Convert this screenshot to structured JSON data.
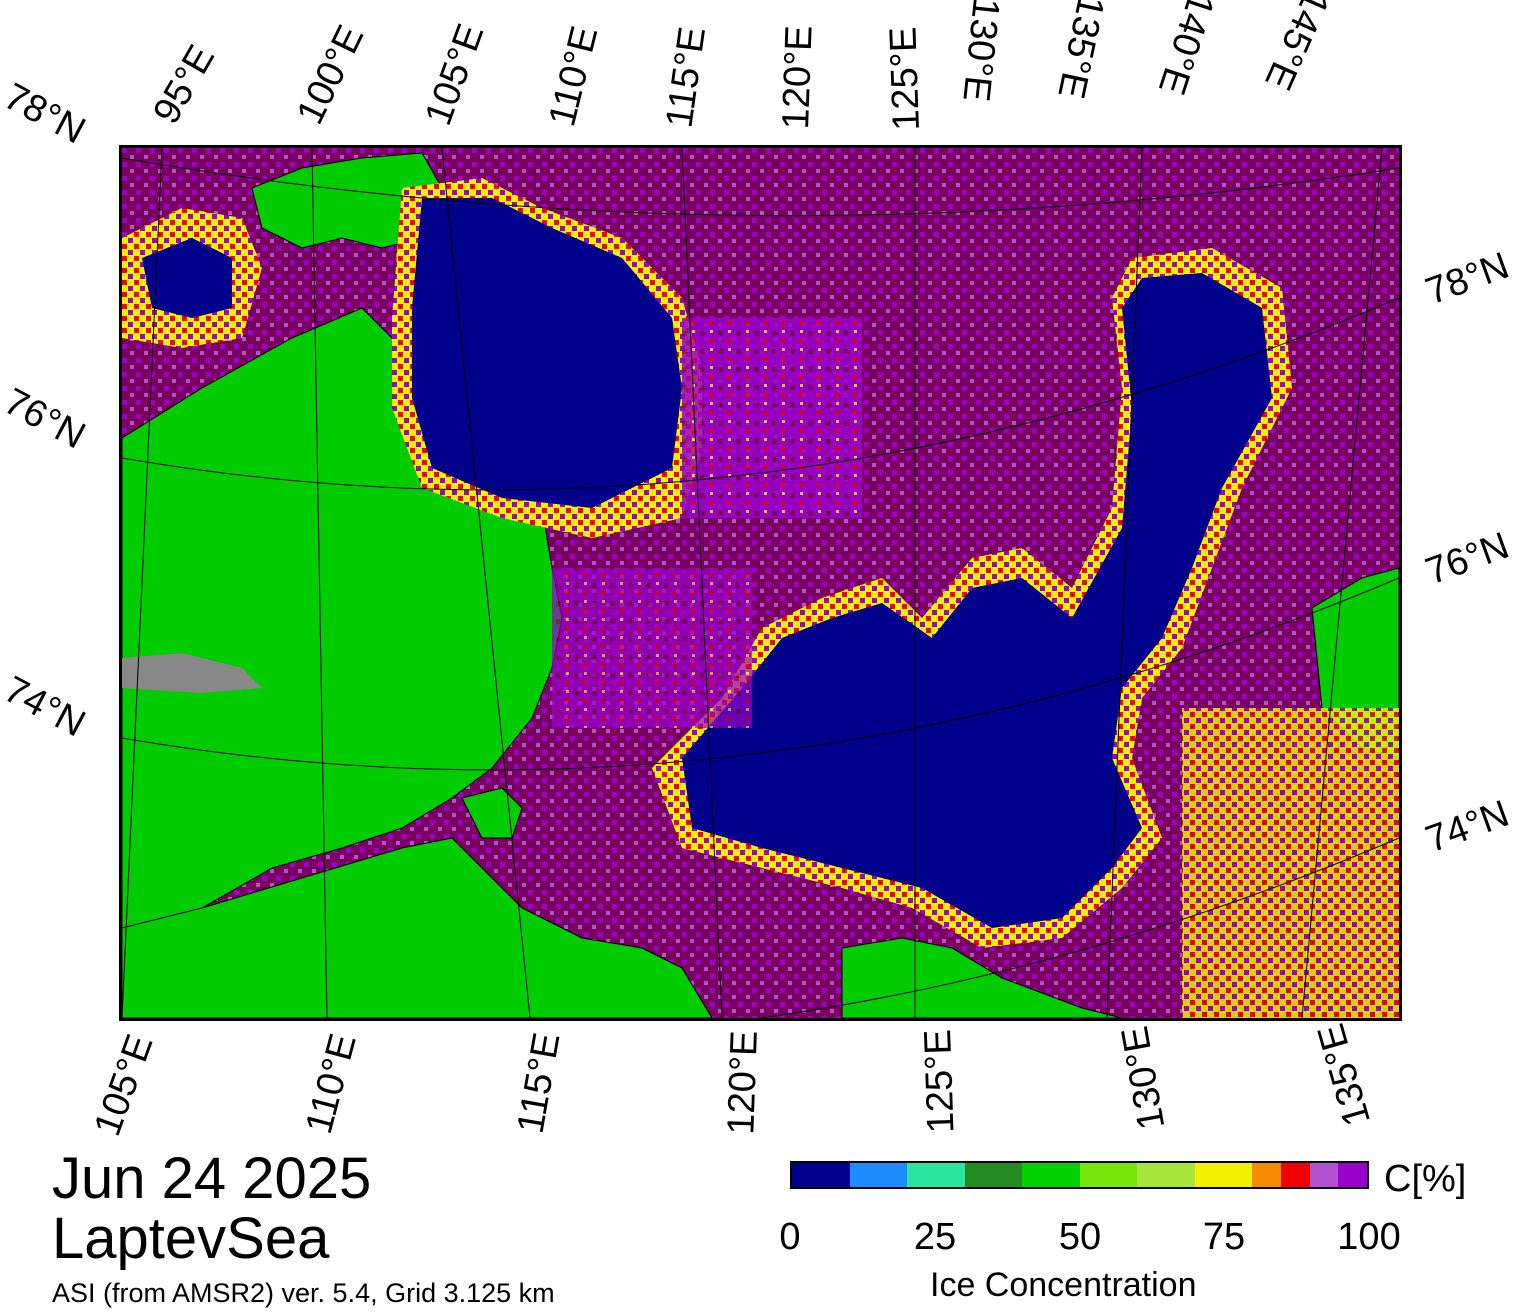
{
  "title": {
    "date": "Jun 24 2025",
    "region": "LaptevSea",
    "source": "ASI (from AMSR2) ver. 5.4,  Grid 3.125 km"
  },
  "map": {
    "top_lon_labels": [
      "95°E",
      "100°E",
      "105°E",
      "110°E",
      "115°E",
      "120°E",
      "125°E",
      "130°E",
      "135°E",
      "140°E",
      "145°E"
    ],
    "bottom_lon_labels": [
      "105°E",
      "110°E",
      "115°E",
      "120°E",
      "125°E",
      "130°E",
      "135°E"
    ],
    "left_lat_labels": [
      "78°N",
      "76°N",
      "74°N"
    ],
    "right_lat_labels": [
      "78°N",
      "76°N",
      "74°N"
    ],
    "colors": {
      "land": "#00cc00",
      "open_water": "#00008c",
      "high_ice": "#7a0060",
      "ice_purple": "#9900cc",
      "coast_gray": "#888888"
    }
  },
  "colorbar": {
    "label": "Ice Concentration",
    "unit": "C[%]",
    "ticks": [
      "0",
      "25",
      "50",
      "75",
      "100"
    ],
    "colors": [
      "#00008c",
      "#1e8cff",
      "#28e6a0",
      "#228b22",
      "#00d200",
      "#78e60a",
      "#a8e63c",
      "#f0f000",
      "#f58c00",
      "#f00000",
      "#b450d2",
      "#9900cc"
    ]
  }
}
